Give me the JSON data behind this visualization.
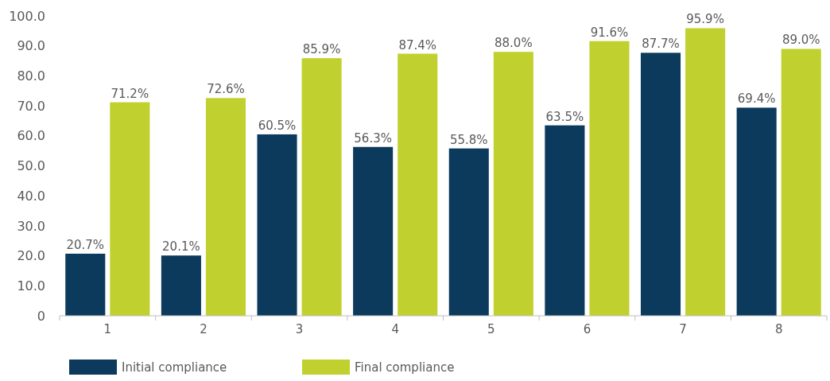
{
  "chart_data": {
    "type": "bar",
    "categories": [
      "1",
      "2",
      "3",
      "4",
      "5",
      "6",
      "7",
      "8"
    ],
    "series": [
      {
        "name": "Initial compliance",
        "color": "#0b3a5c",
        "values": [
          20.7,
          20.1,
          60.5,
          56.3,
          55.8,
          63.5,
          87.7,
          69.4
        ],
        "value_labels": [
          "20.7%",
          "20.1%",
          "60.5%",
          "56.3%",
          "55.8%",
          "63.5%",
          "87.7%",
          "69.4%"
        ]
      },
      {
        "name": "Final compliance",
        "color": "#c0d12f",
        "values": [
          71.2,
          72.6,
          85.9,
          87.4,
          88.0,
          91.6,
          95.9,
          89.0
        ],
        "value_labels": [
          "71.2%",
          "72.6%",
          "85.9%",
          "87.4%",
          "88.0%",
          "91.6%",
          "95.9%",
          "89.0%"
        ]
      }
    ],
    "ylim": [
      0,
      100
    ],
    "yticks": [
      0,
      {
        "value": 10,
        "label": "10.0"
      },
      {
        "value": 20,
        "label": "20.0"
      },
      {
        "value": 30,
        "label": "30.0"
      },
      {
        "value": 40,
        "label": "40.0"
      },
      {
        "value": 50,
        "label": "50.0"
      },
      {
        "value": 60,
        "label": "60.0"
      },
      {
        "value": 70,
        "label": "70.0"
      },
      {
        "value": 80,
        "label": "80.0"
      },
      {
        "value": 90,
        "label": "90.0"
      },
      {
        "value": 100,
        "label": "100.0"
      }
    ],
    "grid": false,
    "legend": "bottom left"
  }
}
